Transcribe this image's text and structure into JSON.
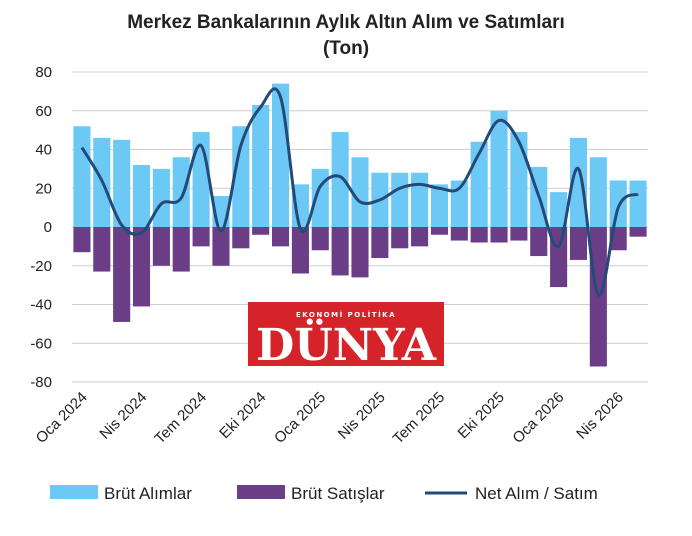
{
  "chart_data": {
    "type": "bar",
    "title": "Merkez Bankalarının Aylık Altın Alım ve Satımları",
    "subtitle": "(Ton)",
    "ylim": [
      -80,
      80
    ],
    "yticks": [
      80,
      60,
      40,
      20,
      0,
      -20,
      -40,
      -60,
      -80
    ],
    "grid": true,
    "legend_position": "bottom",
    "x_tick_labels": [
      {
        "index": 0,
        "label": "Oca 2024"
      },
      {
        "index": 3,
        "label": "Nis 2024"
      },
      {
        "index": 6,
        "label": "Tem 2024"
      },
      {
        "index": 9,
        "label": "Eki 2024"
      },
      {
        "index": 12,
        "label": "Oca 2025"
      },
      {
        "index": 15,
        "label": "Nis 2025"
      },
      {
        "index": 18,
        "label": "Tem 2025"
      },
      {
        "index": 21,
        "label": "Eki 2025"
      },
      {
        "index": 24,
        "label": "Oca 2026"
      },
      {
        "index": 27,
        "label": "Nis 2026"
      }
    ],
    "series": [
      {
        "name": "Brüt Alımlar",
        "type": "bar",
        "color": "#6cc8f5",
        "values": [
          52,
          46,
          45,
          32,
          30,
          36,
          49,
          16,
          52,
          63,
          74,
          22,
          30,
          49,
          36,
          28,
          28,
          28,
          22,
          24,
          44,
          60,
          49,
          31,
          18,
          46,
          36,
          24,
          24
        ]
      },
      {
        "name": "Brüt Satışlar",
        "type": "bar",
        "color": "#6a3d86",
        "values": [
          -13,
          -23,
          -49,
          -41,
          -20,
          -23,
          -10,
          -20,
          -11,
          -4,
          -10,
          -24,
          -12,
          -25,
          -26,
          -16,
          -11,
          -10,
          -4,
          -7,
          -8,
          -8,
          -7,
          -15,
          -31,
          -17,
          -72,
          -12,
          -5
        ]
      },
      {
        "name": "Net Alım / Satım",
        "type": "line",
        "color": "#234a78",
        "values": [
          41,
          24,
          1,
          -3,
          12,
          15,
          42,
          -2,
          42,
          62,
          67,
          -1,
          21,
          26,
          13,
          14,
          20,
          22,
          20,
          20,
          38,
          55,
          44,
          16,
          -10,
          30,
          -35,
          10,
          17
        ]
      }
    ]
  },
  "watermark": {
    "kicker": "EKONOMİ  POLİTİKA",
    "name": "DÜNYA",
    "color": "#d6232a"
  }
}
